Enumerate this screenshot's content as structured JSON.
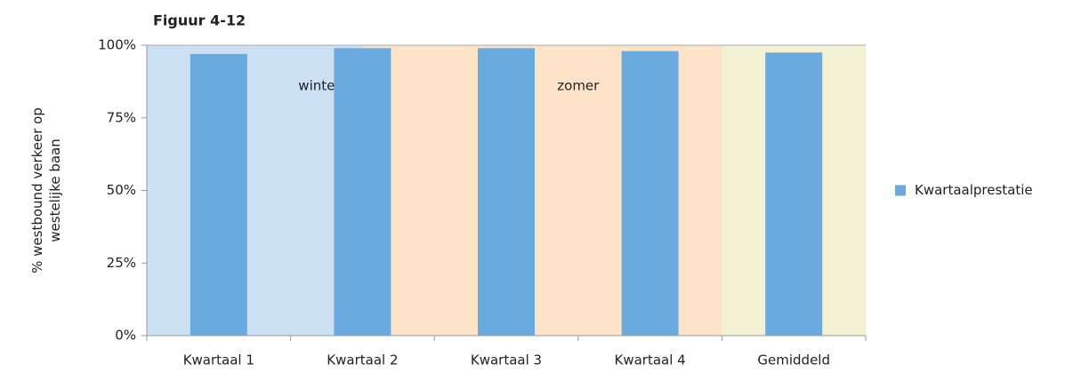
{
  "chart_data": {
    "type": "bar",
    "title": "Figuur 4-12",
    "ylabel": [
      "% westbound verkeer op",
      "westelijke baan"
    ],
    "categories": [
      "Kwartaal 1",
      "Kwartaal 2",
      "Kwartaal 3",
      "Kwartaal 4",
      "Gemiddeld"
    ],
    "series": [
      {
        "name": "Kwartaalprestatie",
        "color": "#6aaadf",
        "values": [
          97,
          99,
          99,
          98,
          97.5
        ]
      }
    ],
    "ylim": [
      0,
      100
    ],
    "yticks": [
      {
        "value": 0,
        "label": "0%"
      },
      {
        "value": 25,
        "label": "25%"
      },
      {
        "value": 50,
        "label": "50%"
      },
      {
        "value": 75,
        "label": "75%"
      },
      {
        "value": 100,
        "label": "100%"
      }
    ],
    "annotations": [
      "winter",
      "zomer"
    ],
    "legend": "right"
  }
}
